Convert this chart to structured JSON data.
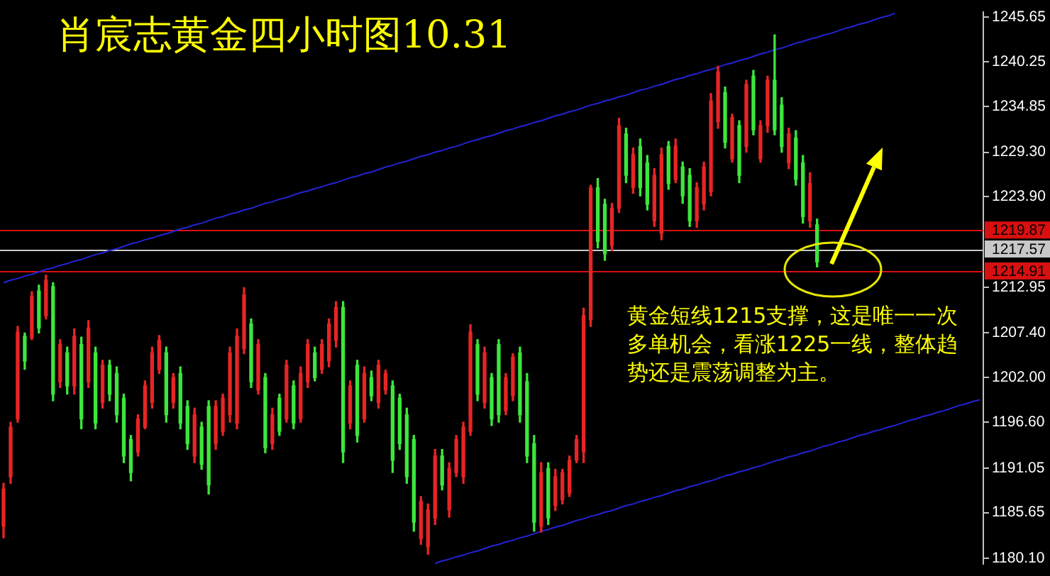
{
  "chart_data": {
    "type": "candlestick",
    "title": "肖宸志黄金四小时图10.31",
    "categories": [
      null,
      null,
      null,
      null,
      null,
      null,
      null,
      null,
      null,
      null,
      null,
      null,
      null,
      null,
      null,
      null,
      null,
      null,
      null,
      null,
      null,
      null,
      null,
      null,
      null,
      null,
      null,
      null,
      null,
      null,
      null,
      null,
      null,
      null,
      null,
      null,
      null,
      null,
      null,
      null,
      null,
      null,
      null,
      null,
      null,
      null,
      null,
      null,
      null,
      null,
      null,
      null,
      null,
      null,
      null,
      null,
      null,
      null,
      null,
      null,
      null,
      null,
      null,
      null,
      null,
      null,
      null,
      null,
      null,
      null,
      null,
      null,
      null,
      null,
      null,
      null,
      null,
      null,
      null,
      null,
      null,
      null,
      null,
      null,
      null,
      null,
      null,
      null,
      null,
      null,
      null,
      null,
      null,
      null,
      null,
      null,
      null,
      null,
      null,
      null,
      null,
      null,
      null,
      null,
      null,
      null,
      null,
      null,
      null,
      null,
      null,
      null,
      null,
      null,
      null,
      null,
      null,
      null,
      null,
      null,
      null,
      null,
      null,
      null,
      null,
      null,
      null,
      null,
      null,
      null,
      null,
      null,
      null,
      null,
      null,
      null,
      null,
      null,
      null
    ],
    "ohlc": [
      [
        1184,
        1189.2,
        1182.6,
        1188.5
      ],
      [
        1190,
        1196.6,
        1189.2,
        1196
      ],
      [
        1197,
        1208.2,
        1196.6,
        1207.5
      ],
      [
        1207,
        1207.4,
        1203,
        1204
      ],
      [
        1206.8,
        1212.4,
        1206.6,
        1211.8
      ],
      [
        1212.5,
        1213.2,
        1207.4,
        1208
      ],
      [
        1209.5,
        1214.4,
        1209.1,
        1213.8
      ],
      [
        1213,
        1213.5,
        1199.2,
        1200
      ],
      [
        1201.5,
        1206.6,
        1200.8,
        1206
      ],
      [
        1205,
        1205.7,
        1200,
        1201
      ],
      [
        1201,
        1207.9,
        1200,
        1207
      ],
      [
        1206,
        1206.9,
        1195.8,
        1197
      ],
      [
        1201.5,
        1208.9,
        1200.8,
        1208
      ],
      [
        1205,
        1205.7,
        1195.8,
        1196.5
      ],
      [
        1199,
        1204.1,
        1198.3,
        1203.5
      ],
      [
        1203.5,
        1204.1,
        1199.2,
        1200
      ],
      [
        1202.5,
        1203.3,
        1196.6,
        1197.5
      ],
      [
        1199.5,
        1200,
        1191.7,
        1192.5
      ],
      [
        1194.5,
        1195,
        1189.5,
        1190.5
      ],
      [
        1193,
        1197.5,
        1192.5,
        1197
      ],
      [
        1196,
        1201.6,
        1195.8,
        1201
      ],
      [
        1199,
        1205.7,
        1198.3,
        1205
      ],
      [
        1203,
        1207.1,
        1202.5,
        1206.5
      ],
      [
        1205,
        1205.7,
        1196.6,
        1197.5
      ],
      [
        1199,
        1202.5,
        1198.3,
        1202
      ],
      [
        1202.5,
        1203.3,
        1195.8,
        1196.5
      ],
      [
        1198.5,
        1199.2,
        1193.3,
        1194
      ],
      [
        1192.5,
        1198.3,
        1191.7,
        1197.5
      ],
      [
        1196,
        1196.6,
        1190.9,
        1191.5
      ],
      [
        1198.5,
        1199.2,
        1187.9,
        1189
      ],
      [
        1194,
        1199.2,
        1193.3,
        1198.5
      ],
      [
        1195.5,
        1200,
        1195,
        1199.5
      ],
      [
        1197.5,
        1205.7,
        1196.6,
        1205
      ],
      [
        1196.5,
        1207.9,
        1195.8,
        1207
      ],
      [
        1205.5,
        1212.9,
        1204.9,
        1212
      ],
      [
        1208.5,
        1209.1,
        1200.8,
        1201.5
      ],
      [
        1200.5,
        1206.6,
        1200,
        1206
      ],
      [
        1202,
        1202.5,
        1192.9,
        1193.5
      ],
      [
        1194,
        1198.3,
        1193.3,
        1197.5
      ],
      [
        1199.5,
        1200,
        1195,
        1195.5
      ],
      [
        1197,
        1204.1,
        1196.6,
        1203.5
      ],
      [
        1201,
        1201.6,
        1195.8,
        1196.5
      ],
      [
        1197,
        1203.3,
        1196.6,
        1202.5
      ],
      [
        1201.5,
        1206.6,
        1200.8,
        1206
      ],
      [
        1205,
        1205.7,
        1201.6,
        1202
      ],
      [
        1203,
        1206.6,
        1202.5,
        1206
      ],
      [
        1204,
        1209.1,
        1203.3,
        1208.5
      ],
      [
        1206.5,
        1211.2,
        1205.7,
        1210.5
      ],
      [
        1210.5,
        1211.2,
        1191.7,
        1193
      ],
      [
        1196.5,
        1201.6,
        1195.8,
        1201
      ],
      [
        1203.5,
        1204.1,
        1194.2,
        1195
      ],
      [
        1197,
        1203.3,
        1196.6,
        1202.5
      ],
      [
        1202,
        1202.8,
        1199.2,
        1199.8
      ],
      [
        1199,
        1204.1,
        1198.3,
        1203.5
      ],
      [
        1200.5,
        1202.9,
        1200,
        1202.5
      ],
      [
        1201,
        1201.6,
        1190.5,
        1192
      ],
      [
        1199.5,
        1200,
        1193.3,
        1194
      ],
      [
        1197.5,
        1198.3,
        1189.2,
        1190
      ],
      [
        1194.5,
        1195,
        1183.4,
        1184.5
      ],
      [
        1182.5,
        1187.6,
        1181.8,
        1187
      ],
      [
        1181.5,
        1186.7,
        1180.6,
        1186
      ],
      [
        1185,
        1193.3,
        1184.2,
        1192.5
      ],
      [
        1192.5,
        1193.3,
        1188.4,
        1189
      ],
      [
        1186,
        1191.7,
        1185.1,
        1191
      ],
      [
        1190.5,
        1195,
        1190,
        1194.5
      ],
      [
        1190,
        1196.6,
        1189.2,
        1196
      ],
      [
        1195.5,
        1208.4,
        1195,
        1207.5
      ],
      [
        1206,
        1206.6,
        1199.2,
        1200
      ],
      [
        1199,
        1205.7,
        1198.3,
        1205
      ],
      [
        1202,
        1202.5,
        1196.2,
        1197
      ],
      [
        1206,
        1206.6,
        1196.6,
        1197.5
      ],
      [
        1198,
        1202.5,
        1197.5,
        1202
      ],
      [
        1199.8,
        1204.9,
        1199.2,
        1204.5
      ],
      [
        1205,
        1205.7,
        1196.6,
        1197.5
      ],
      [
        1201.5,
        1202.5,
        1191.7,
        1192.5
      ],
      [
        1194,
        1195,
        1183.4,
        1184.5
      ],
      [
        1184,
        1191.7,
        1183.3,
        1190.5
      ],
      [
        1191,
        1191.7,
        1184.2,
        1185
      ],
      [
        1186.5,
        1190.9,
        1185.9,
        1190
      ],
      [
        1187.2,
        1190.9,
        1186.7,
        1190.5
      ],
      [
        1188,
        1192.5,
        1187.6,
        1192
      ],
      [
        1192,
        1195,
        1191.7,
        1194.5
      ],
      [
        1193,
        1210.4,
        1191.7,
        1209.5
      ],
      [
        1209,
        1225.3,
        1208.2,
        1225
      ],
      [
        1225,
        1226.1,
        1217.7,
        1218.5
      ],
      [
        1223,
        1223.6,
        1216.2,
        1217
      ],
      [
        1218,
        1223.1,
        1217.4,
        1222.5
      ],
      [
        1222.5,
        1233.4,
        1222,
        1232.5
      ],
      [
        1231.5,
        1232.2,
        1225.6,
        1226.5
      ],
      [
        1225,
        1229.8,
        1224.3,
        1229
      ],
      [
        1230,
        1230.9,
        1224,
        1225
      ],
      [
        1228,
        1228.9,
        1222.3,
        1223
      ],
      [
        1221,
        1227.3,
        1220.3,
        1226.5
      ],
      [
        1219.5,
        1229.8,
        1218.7,
        1229
      ],
      [
        1230,
        1230.6,
        1224.8,
        1225.5
      ],
      [
        1226,
        1230.9,
        1225.6,
        1230
      ],
      [
        1227.5,
        1228.1,
        1223.1,
        1224
      ],
      [
        1226.5,
        1227.3,
        1220.3,
        1221
      ],
      [
        1221,
        1225.6,
        1220.2,
        1225
      ],
      [
        1223,
        1228.1,
        1222.3,
        1227.5
      ],
      [
        1224.5,
        1236.4,
        1224,
        1235.5
      ],
      [
        1233,
        1239.7,
        1232.2,
        1239
      ],
      [
        1236.5,
        1237.2,
        1229.8,
        1230.5
      ],
      [
        1228.5,
        1233.9,
        1228.1,
        1233.5
      ],
      [
        1232.5,
        1233.1,
        1225.6,
        1226.5
      ],
      [
        1230,
        1238,
        1229.3,
        1237.5
      ],
      [
        1238.5,
        1239.2,
        1231.4,
        1232
      ],
      [
        1228.5,
        1233.1,
        1228.1,
        1232.5
      ],
      [
        1232.5,
        1238.5,
        1231.7,
        1238
      ],
      [
        1238,
        1243.5,
        1231.4,
        1232
      ],
      [
        1235,
        1235.9,
        1229.3,
        1230
      ],
      [
        1228,
        1232.2,
        1227.3,
        1231.5
      ],
      [
        1231,
        1231.9,
        1225.3,
        1226
      ],
      [
        1228,
        1228.9,
        1220.7,
        1221.5
      ],
      [
        1221,
        1226.8,
        1220.2,
        1225.5
      ],
      [
        1220.5,
        1221.2,
        1215.4,
        1216
      ],
      null,
      null,
      null,
      null,
      null,
      null,
      null,
      null,
      null,
      null,
      null,
      null,
      null,
      null,
      null,
      null,
      null,
      null,
      null,
      null,
      null,
      null,
      null
    ],
    "colors": [
      "#e82424",
      "#e82424",
      "#e82424",
      "#3ce63c",
      "#e82424",
      "#3ce63c",
      "#e82424",
      "#3ce63c",
      "#e82424",
      "#3ce63c",
      "#e82424",
      "#3ce63c",
      "#e82424",
      "#3ce63c",
      "#e82424",
      "#3ce63c",
      "#3ce63c",
      "#3ce63c",
      "#3ce63c",
      "#e82424",
      "#e82424",
      "#e82424",
      "#e82424",
      "#3ce63c",
      "#e82424",
      "#3ce63c",
      "#3ce63c",
      "#e82424",
      "#3ce63c",
      "#3ce63c",
      "#e82424",
      "#e82424",
      "#e82424",
      "#e82424",
      "#e82424",
      "#3ce63c",
      "#e82424",
      "#3ce63c",
      "#e82424",
      "#3ce63c",
      "#e82424",
      "#3ce63c",
      "#e82424",
      "#e82424",
      "#3ce63c",
      "#e82424",
      "#e82424",
      "#e82424",
      "#3ce63c",
      "#e82424",
      "#3ce63c",
      "#e82424",
      "#3ce63c",
      "#e82424",
      "#e82424",
      "#3ce63c",
      "#3ce63c",
      "#3ce63c",
      "#3ce63c",
      "#e82424",
      "#e82424",
      "#e82424",
      "#3ce63c",
      "#e82424",
      "#e82424",
      "#e82424",
      "#e82424",
      "#3ce63c",
      "#e82424",
      "#3ce63c",
      "#3ce63c",
      "#e82424",
      "#e82424",
      "#3ce63c",
      "#3ce63c",
      "#3ce63c",
      "#e82424",
      "#3ce63c",
      "#e82424",
      "#e82424",
      "#e82424",
      "#e82424",
      "#e82424",
      "#e82424",
      "#3ce63c",
      "#3ce63c",
      "#e82424",
      "#e82424",
      "#3ce63c",
      "#e82424",
      "#3ce63c",
      "#3ce63c",
      "#e82424",
      "#e82424",
      "#3ce63c",
      "#e82424",
      "#3ce63c",
      "#3ce63c",
      "#e82424",
      "#e82424",
      "#e82424",
      "#e82424",
      "#3ce63c",
      "#e82424",
      "#3ce63c",
      "#e82424",
      "#3ce63c",
      "#e82424",
      "#e82424",
      "#3ce63c",
      "#3ce63c",
      "#e82424",
      "#3ce63c",
      "#3ce63c",
      "#e82424",
      "#3ce63c",
      null,
      null,
      null,
      null,
      null,
      null,
      null,
      null,
      null,
      null,
      null,
      null,
      null,
      null,
      null,
      null,
      null,
      null,
      null,
      null,
      null,
      null,
      null
    ],
    "series": [
      {
        "type": "line",
        "color": "#2323d6",
        "values": [
          1213.5,
          1213.8,
          1214.0,
          1214.3,
          1214.5,
          1214.8,
          1215.1,
          1215.3,
          1215.6,
          1215.8,
          1216.1,
          1216.3,
          1216.6,
          1216.9,
          1217.1,
          1217.4,
          1217.6,
          1217.9,
          1218.2,
          1218.4,
          1218.7,
          1218.9,
          1219.2,
          1219.4,
          1219.7,
          1220.0,
          1220.2,
          1220.5,
          1220.7,
          1221.0,
          1221.3,
          1221.5,
          1221.8,
          1222.0,
          1222.3,
          1222.5,
          1222.8,
          1223.1,
          1223.3,
          1223.6,
          1223.8,
          1224.1,
          1224.4,
          1224.6,
          1224.9,
          1225.1,
          1225.4,
          1225.6,
          1225.9,
          1226.2,
          1226.4,
          1226.7,
          1226.9,
          1227.2,
          1227.5,
          1227.7,
          1228.0,
          1228.2,
          1228.5,
          1228.8,
          1229.0,
          1229.3,
          1229.5,
          1229.8,
          1230.0,
          1230.3,
          1230.6,
          1230.8,
          1231.1,
          1231.3,
          1231.6,
          1231.9,
          1232.1,
          1232.4,
          1232.6,
          1232.9,
          1233.1,
          1233.4,
          1233.7,
          1233.9,
          1234.2,
          1234.4,
          1234.7,
          1235.0,
          1235.2,
          1235.5,
          1235.7,
          1236.0,
          1236.2,
          1236.5,
          1236.8,
          1237.0,
          1237.3,
          1237.5,
          1237.8,
          1238.1,
          1238.3,
          1238.6,
          1238.8,
          1239.1,
          1239.3,
          1239.6,
          1239.9,
          1240.1,
          1240.4,
          1240.6,
          1240.9,
          1241.2,
          1241.4,
          1241.7,
          1241.9,
          1242.2,
          1242.5,
          1242.7,
          1243.0,
          1243.2,
          1243.5,
          1243.7,
          1244.0,
          1244.3,
          1244.5,
          1244.8,
          1245.0,
          1245.3,
          1245.6,
          1245.8,
          1246.1,
          null,
          null,
          null,
          null,
          null,
          null,
          null,
          null,
          null,
          null,
          null,
          null
        ]
      },
      {
        "type": "line",
        "color": "#2323d6",
        "values": [
          null,
          null,
          null,
          null,
          null,
          null,
          null,
          null,
          null,
          null,
          null,
          null,
          null,
          null,
          null,
          null,
          null,
          null,
          null,
          null,
          null,
          null,
          null,
          null,
          null,
          null,
          null,
          null,
          null,
          null,
          null,
          null,
          null,
          null,
          null,
          null,
          null,
          null,
          null,
          null,
          null,
          null,
          null,
          null,
          null,
          null,
          null,
          null,
          null,
          null,
          null,
          null,
          null,
          null,
          null,
          null,
          null,
          null,
          null,
          null,
          null,
          1179.5,
          1179.8,
          1180.0,
          1180.3,
          1180.5,
          1180.8,
          1181.0,
          1181.3,
          1181.6,
          1181.8,
          1182.1,
          1182.3,
          1182.6,
          1182.8,
          1183.1,
          1183.4,
          1183.6,
          1183.9,
          1184.1,
          1184.4,
          1184.7,
          1184.9,
          1185.2,
          1185.4,
          1185.7,
          1185.9,
          1186.2,
          1186.5,
          1186.7,
          1187.0,
          1187.2,
          1187.5,
          1187.7,
          1188.0,
          1188.3,
          1188.5,
          1188.8,
          1189.0,
          1189.3,
          1189.5,
          1189.8,
          1190.1,
          1190.3,
          1190.6,
          1190.8,
          1191.1,
          1191.3,
          1191.6,
          1191.9,
          1192.1,
          1192.4,
          1192.6,
          1192.9,
          1193.1,
          1193.4,
          1193.7,
          1193.9,
          1194.2,
          1194.4,
          1194.7,
          1195.0,
          1195.2,
          1195.5,
          1195.7,
          1196.0,
          1196.2,
          1196.5,
          1196.8,
          1197.0,
          1197.3,
          1197.5,
          1197.8,
          1198.0,
          1198.3,
          1198.6,
          1198.8,
          1199.1,
          1199.3
        ]
      }
    ],
    "ylim": [
      1179.4,
      1246.3
    ],
    "yticks": [
      {
        "value": 1180.1,
        "label": "1180.10"
      },
      1185.65,
      1191.05,
      {
        "value": 1196.6,
        "label": "1196.60"
      },
      {
        "value": 1202,
        "label": "1202.00"
      },
      {
        "value": 1207.4,
        "label": "1207.40"
      },
      1212.95,
      {
        "value": 1223.9,
        "label": "1223.90"
      },
      {
        "value": 1229.3,
        "label": "1229.30"
      },
      1234.85,
      1240.25,
      1245.65
    ],
    "tick_labels": "y",
    "ref_lines": [
      {
        "axis": "y",
        "value": 1219.87,
        "label": "1219.87",
        "color": "#d81010"
      },
      {
        "axis": "y",
        "value": 1217.57,
        "label": "1217.57",
        "color": "#c8c8c8"
      },
      {
        "axis": "y",
        "value": 1214.91,
        "label": "1214.91",
        "color": "#d81010"
      }
    ],
    "annotations": [
      "黄金短线1215支撑，这是唯一一次多单机会，看涨1225一线，整体趋势还是震荡调整为主。"
    ]
  }
}
